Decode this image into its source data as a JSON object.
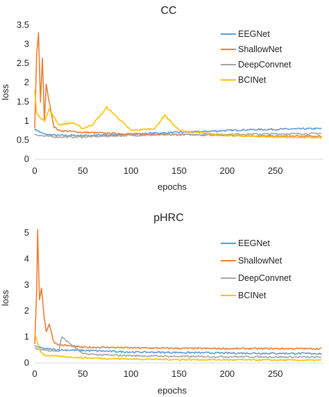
{
  "colors": {
    "EEGNet": "#5b9bd5",
    "ShallowNet": "#ed7d31",
    "DeepConvnet": "#a5a5a5",
    "BCINet": "#ffc000"
  },
  "chart_data": [
    {
      "type": "line",
      "title": "CC",
      "xlabel": "epochs",
      "ylabel": "loss",
      "xlim": [
        0,
        300
      ],
      "ylim": [
        0,
        3.5
      ],
      "xticks": [
        "0",
        "50",
        "100",
        "150",
        "200",
        "250"
      ],
      "yticks": [
        "0",
        "0.5",
        "1",
        "1.5",
        "2",
        "2.5",
        "3",
        "3.5"
      ],
      "legend_position": "top-right",
      "series": [
        {
          "name": "EEGNet",
          "x": [
            0,
            10,
            25,
            50,
            75,
            100,
            125,
            150,
            175,
            200,
            225,
            250,
            275,
            298
          ],
          "values": [
            0.78,
            0.65,
            0.62,
            0.62,
            0.63,
            0.65,
            0.68,
            0.7,
            0.72,
            0.75,
            0.77,
            0.78,
            0.79,
            0.8
          ]
        },
        {
          "name": "ShallowNet",
          "x": [
            0,
            2,
            4,
            6,
            8,
            10,
            12,
            15,
            20,
            25,
            50,
            75,
            100,
            150,
            200,
            250,
            298
          ],
          "values": [
            0.8,
            2.75,
            3.3,
            1.5,
            2.65,
            1.0,
            1.95,
            1.5,
            0.85,
            0.75,
            0.7,
            0.68,
            0.66,
            0.64,
            0.62,
            0.6,
            0.6
          ]
        },
        {
          "name": "DeepConvnet",
          "x": [
            0,
            10,
            25,
            50,
            75,
            100,
            150,
            200,
            250,
            298
          ],
          "values": [
            0.65,
            0.6,
            0.58,
            0.58,
            0.6,
            0.62,
            0.64,
            0.65,
            0.66,
            0.67
          ]
        },
        {
          "name": "BCINet",
          "x": [
            0,
            2,
            5,
            10,
            15,
            25,
            40,
            50,
            60,
            75,
            100,
            125,
            135,
            150,
            175,
            200,
            250,
            298
          ],
          "values": [
            1.8,
            1.2,
            1.1,
            1.0,
            1.3,
            0.9,
            0.95,
            0.8,
            0.9,
            1.35,
            0.75,
            0.8,
            1.15,
            0.75,
            0.68,
            0.62,
            0.58,
            0.56
          ]
        }
      ]
    },
    {
      "type": "line",
      "title": "pHRC",
      "xlabel": "epochs",
      "ylabel": "loss",
      "xlim": [
        0,
        300
      ],
      "ylim": [
        0,
        5
      ],
      "xticks": [
        "0",
        "50",
        "100",
        "150",
        "200",
        "250"
      ],
      "yticks": [
        "0",
        "1",
        "2",
        "3",
        "4",
        "5"
      ],
      "legend_position": "top-right",
      "series": [
        {
          "name": "EEGNet",
          "x": [
            0,
            10,
            25,
            50,
            75,
            100,
            150,
            200,
            250,
            298
          ],
          "values": [
            0.65,
            0.55,
            0.5,
            0.48,
            0.45,
            0.42,
            0.4,
            0.38,
            0.37,
            0.36
          ]
        },
        {
          "name": "ShallowNet",
          "x": [
            0,
            2,
            3,
            5,
            7,
            10,
            12,
            15,
            20,
            25,
            50,
            75,
            100,
            150,
            200,
            250,
            298
          ],
          "values": [
            0.7,
            2.8,
            5.1,
            2.4,
            2.9,
            1.7,
            1.2,
            1.5,
            0.8,
            0.7,
            0.6,
            0.6,
            0.58,
            0.56,
            0.55,
            0.55,
            0.55
          ]
        },
        {
          "name": "DeepConvnet",
          "x": [
            0,
            10,
            25,
            28,
            50,
            75,
            100,
            150,
            200,
            250,
            298
          ],
          "values": [
            0.55,
            0.5,
            0.45,
            1.0,
            0.35,
            0.3,
            0.28,
            0.25,
            0.24,
            0.23,
            0.22
          ]
        },
        {
          "name": "BCINet",
          "x": [
            0,
            5,
            10,
            25,
            50,
            75,
            100,
            150,
            200,
            250,
            298
          ],
          "values": [
            1.1,
            0.5,
            0.3,
            0.25,
            0.2,
            0.17,
            0.15,
            0.13,
            0.12,
            0.11,
            0.1
          ]
        }
      ]
    }
  ]
}
